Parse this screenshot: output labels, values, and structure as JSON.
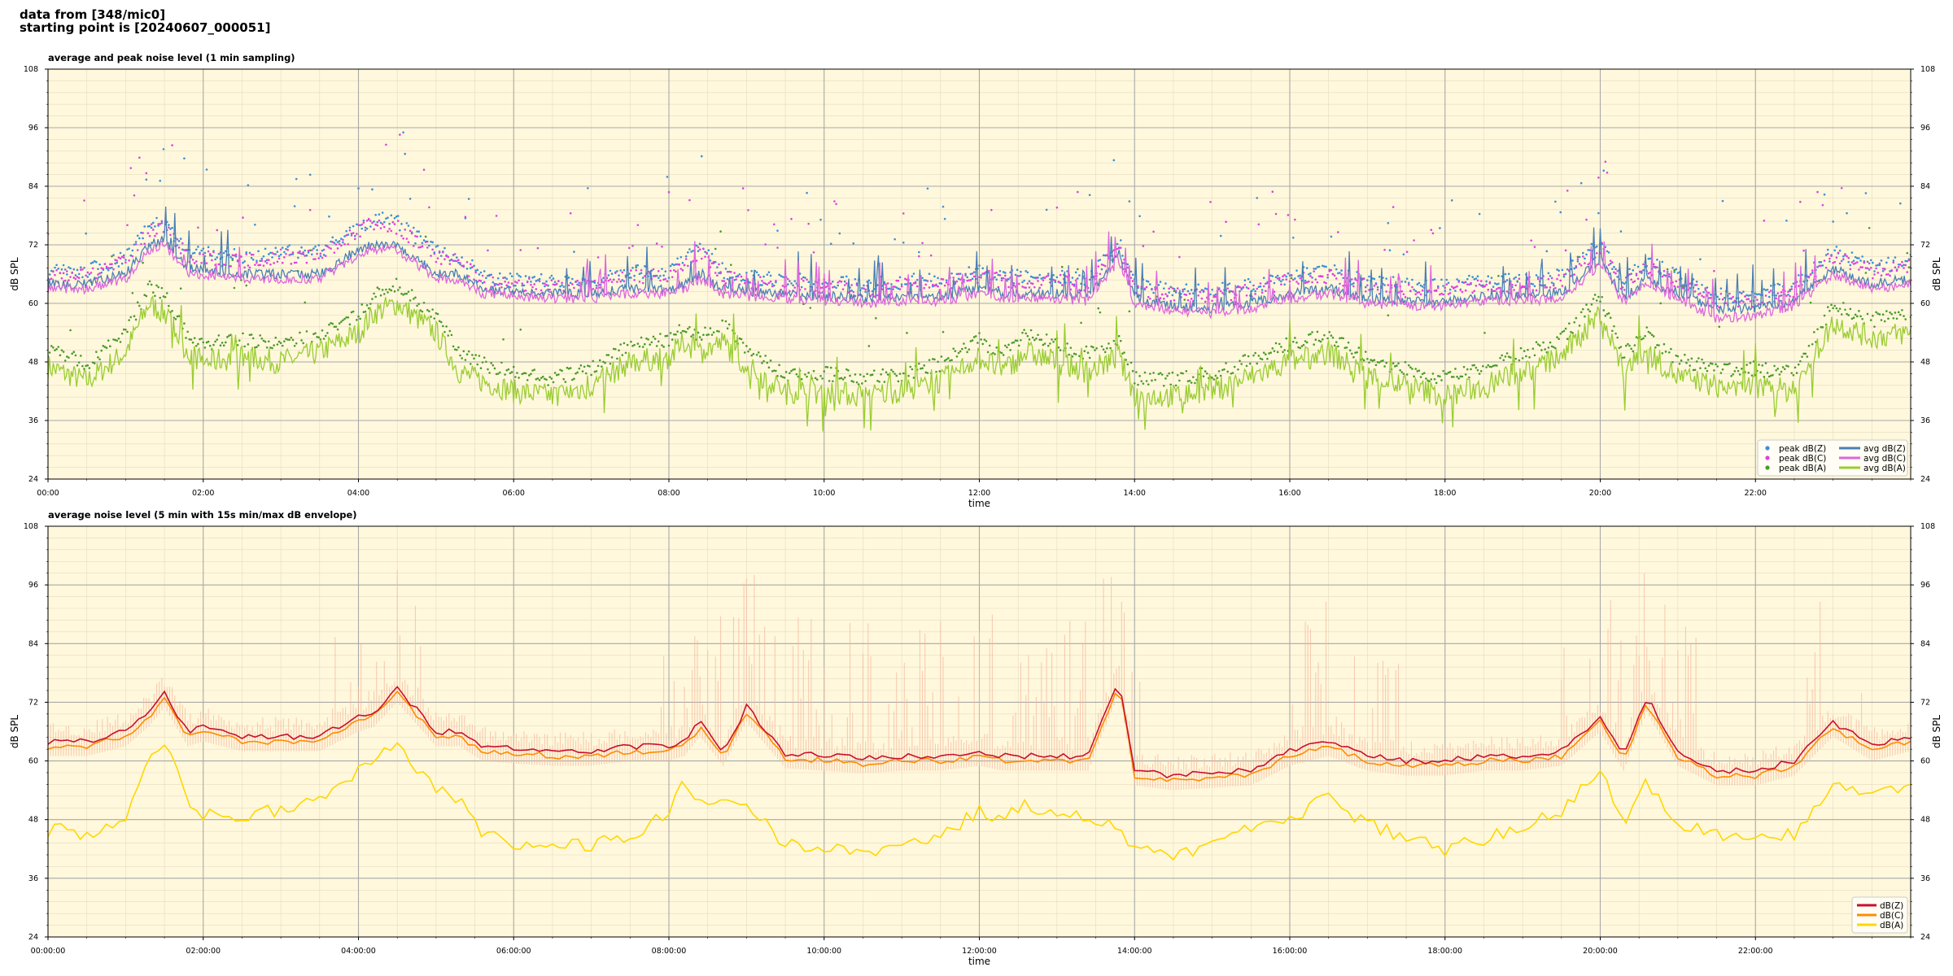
{
  "header": {
    "line1": "data from [348/mic0]",
    "line2": "starting point is [20240607_000051]"
  },
  "colors": {
    "panel_bg": "#fff8dc",
    "peak_z": "#3a8fd6",
    "peak_c": "#e040e0",
    "peak_a": "#4a9a2a",
    "avg_z": "#4a7fb5",
    "avg_c": "#dd66dd",
    "avg_a": "#9acd32",
    "db_z": "#c8102e",
    "db_c": "#ff8c00",
    "db_a": "#ffd700",
    "envelope": "#f4b8a0"
  },
  "chart_data": [
    {
      "type": "line",
      "title": "average and peak noise level (1 min sampling)",
      "xlabel": "time",
      "ylabel": "dB SPL",
      "ylim": [
        24,
        108
      ],
      "xlim_hours": [
        0,
        24
      ],
      "yticks": [
        "24",
        "36",
        "48",
        "60",
        "72",
        "84",
        "96",
        "108"
      ],
      "xticks": [
        "00:00",
        "02:00",
        "04:00",
        "06:00",
        "08:00",
        "10:00",
        "12:00",
        "14:00",
        "16:00",
        "18:00",
        "20:00",
        "22:00"
      ],
      "grid": true,
      "legend_position": "lower-right",
      "legend": [
        "peak dB(Z)",
        "peak dB(C)",
        "peak dB(A)",
        "avg dB(Z)",
        "avg dB(C)",
        "avg dB(A)"
      ],
      "hours": [
        0,
        0.5,
        1,
        1.3,
        1.5,
        1.8,
        2,
        2.5,
        3,
        3.5,
        4,
        4.2,
        4.5,
        5,
        5.3,
        5.6,
        6,
        6.5,
        7,
        7.5,
        8,
        8.2,
        8.4,
        8.7,
        9,
        9.5,
        10,
        10.5,
        11,
        11.5,
        12,
        12.3,
        12.6,
        13,
        13.4,
        13.8,
        14,
        14.5,
        15,
        15.5,
        16,
        16.5,
        17,
        17.5,
        18,
        18.5,
        19,
        19.5,
        20,
        20.3,
        20.6,
        21,
        21.5,
        22,
        22.5,
        23,
        23.5,
        24
      ],
      "series": [
        {
          "name": "avg dB(Z)",
          "values": [
            64,
            64,
            66,
            72,
            73,
            67,
            67,
            66,
            66,
            66,
            71,
            72,
            72,
            66,
            66,
            63,
            62.5,
            62,
            62,
            63,
            63,
            64,
            66,
            63,
            62.5,
            62,
            61.5,
            61,
            61.5,
            61.5,
            63,
            62,
            62,
            62,
            61.5,
            70,
            61,
            59.5,
            59,
            60,
            62,
            63,
            61,
            60.5,
            60.5,
            61.5,
            61.5,
            62,
            69,
            61,
            65,
            62,
            59,
            59,
            60.5,
            67,
            64,
            65
          ]
        },
        {
          "name": "avg dB(C)",
          "values": [
            63,
            63,
            65,
            71,
            72,
            66,
            66,
            65,
            65,
            65,
            70,
            71,
            71,
            65,
            65,
            62,
            61.5,
            61,
            61,
            62,
            62,
            63,
            65,
            62,
            61.5,
            61,
            60.5,
            60,
            60.5,
            60.5,
            62,
            61,
            61,
            61,
            60.5,
            69,
            60,
            58.5,
            58,
            59,
            61,
            62,
            60,
            59.5,
            59.5,
            60.5,
            60.5,
            61,
            68,
            60,
            64,
            61,
            57,
            57.5,
            59.5,
            66,
            63,
            64
          ]
        },
        {
          "name": "avg dB(A)",
          "values": [
            47,
            44,
            50,
            60,
            58,
            50,
            48,
            49,
            48,
            50,
            54,
            58,
            60,
            54,
            46,
            44,
            42,
            41,
            43,
            48,
            49,
            52,
            50,
            52,
            47,
            42,
            42,
            41,
            42,
            44,
            49,
            46,
            50,
            48,
            46,
            49,
            41,
            41,
            42,
            45,
            48,
            50,
            45,
            43,
            41,
            43,
            46,
            49,
            58,
            46,
            50,
            45,
            43,
            43,
            42,
            56,
            53,
            54
          ]
        },
        {
          "name": "peak dB(Z)",
          "values": [
            66,
            66,
            69,
            75,
            76,
            70,
            70,
            69,
            70,
            70,
            75,
            77,
            76,
            70,
            69,
            65,
            64,
            64,
            64,
            66,
            66,
            68,
            71,
            66,
            65,
            64,
            64,
            63,
            64,
            64,
            66,
            65,
            65,
            65,
            64,
            72,
            63,
            62,
            62,
            63,
            65,
            66,
            64,
            63,
            63,
            64,
            64,
            65,
            72,
            64,
            68,
            65,
            61,
            61,
            63,
            70,
            67,
            68
          ]
        },
        {
          "name": "peak dB(C)",
          "values": [
            65,
            65,
            68,
            74,
            75,
            69,
            69,
            68,
            69,
            69,
            74,
            76,
            75,
            69,
            68,
            64,
            63,
            63,
            63,
            65,
            65,
            67,
            70,
            65,
            64,
            63,
            63,
            62,
            63,
            63,
            65,
            64,
            64,
            64,
            63,
            71,
            62,
            61,
            61,
            62,
            64,
            65,
            63,
            62,
            62,
            63,
            63,
            64,
            71,
            63,
            67,
            64,
            60,
            60,
            62,
            69,
            66,
            67
          ]
        },
        {
          "name": "peak dB(A)",
          "values": [
            50,
            47,
            53,
            63,
            61,
            53,
            51,
            52,
            51,
            53,
            57,
            61,
            63,
            57,
            49,
            47,
            45,
            44,
            46,
            51,
            52,
            55,
            53,
            55,
            50,
            45,
            45,
            44,
            45,
            47,
            52,
            49,
            53,
            51,
            49,
            52,
            44,
            44,
            45,
            48,
            51,
            53,
            48,
            46,
            44,
            46,
            49,
            52,
            61,
            49,
            53,
            48,
            46,
            46,
            45,
            59,
            56,
            57
          ]
        }
      ]
    },
    {
      "type": "line",
      "title": "average noise level (5 min with 15s min/max dB envelope)",
      "xlabel": "time",
      "ylabel": "dB SPL",
      "ylim": [
        24,
        108
      ],
      "xlim_hours": [
        0,
        24
      ],
      "yticks": [
        "24",
        "36",
        "48",
        "60",
        "72",
        "84",
        "96",
        "108"
      ],
      "xticks": [
        "00:00:00",
        "02:00:00",
        "04:00:00",
        "06:00:00",
        "08:00:00",
        "10:00:00",
        "12:00:00",
        "14:00:00",
        "16:00:00",
        "18:00:00",
        "20:00:00",
        "22:00:00"
      ],
      "grid": true,
      "legend_position": "lower-right",
      "legend": [
        "dB(Z)",
        "dB(C)",
        "dB(A)"
      ],
      "hours": [
        0,
        0.5,
        1,
        1.3,
        1.5,
        1.8,
        2,
        2.5,
        3,
        3.5,
        4,
        4.2,
        4.5,
        5,
        5.3,
        5.6,
        6,
        6.5,
        7,
        7.5,
        8,
        8.2,
        8.4,
        8.7,
        9,
        9.5,
        10,
        10.5,
        11,
        11.5,
        12,
        12.3,
        12.6,
        13,
        13.4,
        13.8,
        14,
        14.5,
        15,
        15.5,
        16,
        16.5,
        17,
        17.5,
        18,
        18.5,
        19,
        19.5,
        20,
        20.3,
        20.6,
        21,
        21.5,
        22,
        22.5,
        23,
        23.5,
        24
      ],
      "series": [
        {
          "name": "dB(Z)",
          "values": [
            64,
            64,
            66,
            70,
            74,
            66,
            67,
            65,
            65,
            65,
            69,
            70,
            75,
            66,
            66,
            63,
            62.5,
            62,
            62,
            63,
            63,
            64,
            68,
            62,
            71,
            61.5,
            61,
            60.5,
            61,
            61,
            62,
            61,
            61,
            61,
            61,
            77,
            58,
            57,
            57.5,
            58,
            62,
            64,
            61,
            60,
            60,
            61,
            61,
            62,
            69,
            61,
            73,
            62,
            58,
            58,
            60,
            68,
            63,
            65
          ]
        },
        {
          "name": "dB(C)",
          "values": [
            63,
            63,
            65,
            69,
            73,
            65,
            66,
            64,
            64,
            64,
            68,
            69,
            74,
            65,
            65,
            62,
            61.5,
            61,
            61,
            62,
            62,
            63,
            67,
            61,
            70,
            60.5,
            60,
            59.5,
            60,
            60,
            61,
            60,
            60,
            60,
            60,
            76,
            57,
            56,
            56.5,
            57,
            61,
            63,
            60,
            59,
            59,
            60,
            60,
            61,
            68,
            60,
            72,
            61,
            57,
            57,
            59,
            67,
            62,
            64
          ]
        },
        {
          "name": "dB(A)",
          "values": [
            46,
            45,
            48,
            60,
            64,
            52,
            49,
            49,
            50,
            52,
            58,
            60,
            63,
            54,
            52,
            45,
            43,
            42,
            43,
            44,
            50,
            56,
            52,
            51,
            52,
            43,
            42,
            41,
            42,
            44,
            50,
            48,
            51,
            49,
            49,
            46,
            42,
            41,
            43,
            46,
            48,
            53,
            47,
            44,
            42,
            44,
            47,
            50,
            59,
            46,
            56,
            47,
            45,
            44,
            45,
            55,
            53,
            54
          ]
        }
      ]
    }
  ]
}
